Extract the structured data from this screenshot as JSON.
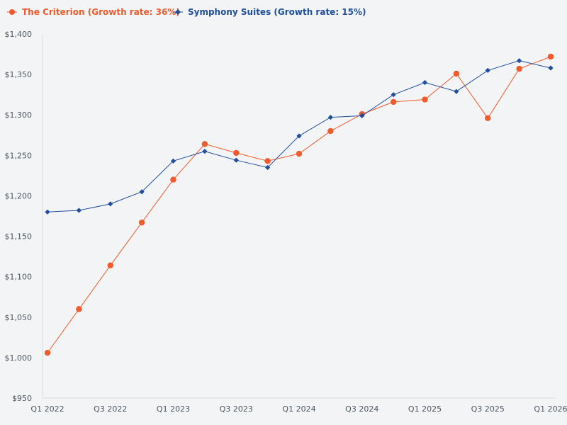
{
  "chart_data": {
    "type": "line",
    "title": "",
    "xlabel": "",
    "ylabel": "",
    "categories": [
      "Q1 2022",
      "Q2 2022",
      "Q3 2022",
      "Q4 2022",
      "Q1 2023",
      "Q2 2023",
      "Q3 2023",
      "Q4 2023",
      "Q1 2024",
      "Q2 2024",
      "Q3 2024",
      "Q4 2024",
      "Q1 2025",
      "Q2 2025",
      "Q3 2025",
      "Q4 2025",
      "Q1 2026"
    ],
    "x_tick_labels": [
      "Q1 2022",
      "Q3 2022",
      "Q1 2023",
      "Q3 2023",
      "Q1 2024",
      "Q3 2024",
      "Q1 2025",
      "Q3 2025",
      "Q1 2026"
    ],
    "x_tick_indices": [
      0,
      2,
      4,
      6,
      8,
      10,
      12,
      14,
      16
    ],
    "ylim": [
      950,
      1400
    ],
    "y_ticks": [
      950,
      1000,
      1050,
      1100,
      1150,
      1200,
      1250,
      1300,
      1350,
      1400
    ],
    "y_tick_labels": [
      "$950",
      "$1,000",
      "$1,050",
      "$1,100",
      "$1,150",
      "$1,200",
      "$1,250",
      "$1,300",
      "$1,350",
      "$1,400"
    ],
    "legend_position": "top-left",
    "series": [
      {
        "name": "The Criterion (Growth rate: 36%)",
        "color": "#f15a2b",
        "marker": "circle",
        "values": [
          1006,
          1060,
          1114,
          1167,
          1220,
          1264,
          1253,
          1243,
          1252,
          1280,
          1301,
          1316,
          1319,
          1351,
          1296,
          1357,
          1372
        ]
      },
      {
        "name": "Symphony Suites (Growth rate: 15%)",
        "color": "#1f4e9a",
        "marker": "diamond",
        "values": [
          1180,
          1182,
          1190,
          1205,
          1243,
          1255,
          1244,
          1235,
          1274,
          1297,
          1299,
          1325,
          1340,
          1329,
          1355,
          1367,
          1358
        ]
      }
    ]
  }
}
